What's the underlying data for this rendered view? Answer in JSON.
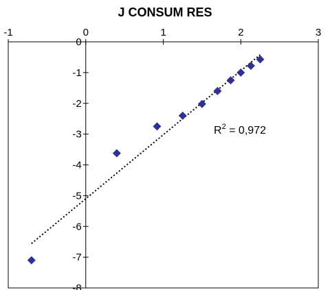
{
  "chart_data": {
    "type": "scatter",
    "title": "J CONSUM RES",
    "xlim": [
      -1,
      3
    ],
    "ylim": [
      -8,
      0
    ],
    "xticks": [
      -1,
      0,
      1,
      2,
      3
    ],
    "yticks": [
      0,
      -1,
      -2,
      -3,
      -4,
      -5,
      -6,
      -7,
      -8
    ],
    "grid": false,
    "points": [
      {
        "x": -0.7,
        "y": -7.1
      },
      {
        "x": 0.4,
        "y": -3.62
      },
      {
        "x": 0.92,
        "y": -2.75
      },
      {
        "x": 1.25,
        "y": -2.4
      },
      {
        "x": 1.5,
        "y": -2.02
      },
      {
        "x": 1.7,
        "y": -1.6
      },
      {
        "x": 1.87,
        "y": -1.25
      },
      {
        "x": 2.0,
        "y": -1.0
      },
      {
        "x": 2.13,
        "y": -0.78
      },
      {
        "x": 2.25,
        "y": -0.57
      }
    ],
    "trendline": {
      "style": "dotted",
      "slope": 2.08,
      "intercept": -5.1,
      "x_range": [
        -0.7,
        2.25
      ]
    },
    "annotation": {
      "r2_label": "R",
      "r2_sup": "2",
      "r2_value": " = 0,972"
    },
    "marker_color": "#2E3192"
  }
}
